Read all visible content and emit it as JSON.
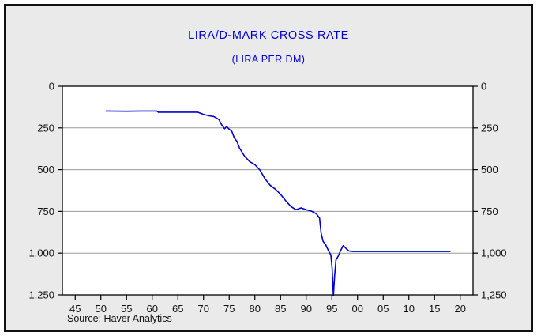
{
  "source_note": "Source: Haver Analytics",
  "chart_data": {
    "type": "line",
    "title": "LIRA/D-MARK CROSS RATE",
    "subtitle": "(LIRA PER DM)",
    "xlabel": "",
    "ylabel": "",
    "x_unit": "year",
    "xlim": [
      1942.5,
      2022.5
    ],
    "ylim": [
      0,
      1250
    ],
    "y_axis_note": "inverted scale: 0 at top, 1,250 at bottom; lira per DM plotted downward; labels on both left and right sides",
    "grid": "horizontal",
    "legend": "none",
    "x_tick_values": [
      1945,
      1950,
      1955,
      1960,
      1965,
      1970,
      1975,
      1980,
      1985,
      1990,
      1995,
      2000,
      2005,
      2010,
      2015,
      2020
    ],
    "x_tick_labels": [
      "45",
      "50",
      "55",
      "60",
      "65",
      "70",
      "75",
      "80",
      "85",
      "90",
      "95",
      "00",
      "05",
      "10",
      "15",
      "20"
    ],
    "y_tick_values": [
      0,
      250,
      500,
      750,
      1000,
      1250
    ],
    "y_tick_labels": [
      "0",
      "250",
      "500",
      "750",
      "1,000",
      "1,250"
    ],
    "colors": {
      "line": "#0000cd",
      "title": "#0000cd",
      "background": "#eaeaea",
      "plot_background": "#ffffff",
      "grid": "#999999",
      "frame": "#000000",
      "tick_text": "#111111"
    },
    "series": [
      {
        "name": "Lira per D-Mark",
        "x": [
          1951,
          1955,
          1958,
          1960.9,
          1961.2,
          1965,
          1968.9,
          1969.9,
          1971,
          1972,
          1973,
          1973.6,
          1974.1,
          1974.5,
          1975,
          1975.5,
          1976,
          1976.5,
          1977,
          1978,
          1979,
          1980,
          1981,
          1982,
          1983,
          1984,
          1985,
          1986,
          1987,
          1988,
          1989,
          1990,
          1991,
          1992,
          1992.6,
          1992.9,
          1993.3,
          1993.8,
          1994.1,
          1994.5,
          1994.8,
          1995.05,
          1995.3,
          1995.55,
          1995.8,
          1996.2,
          1996.7,
          1997.2,
          1997.7,
          1998.3,
          1999,
          2000,
          2005,
          2010,
          2015,
          2018
        ],
        "y": [
          149,
          150,
          149,
          149,
          156,
          156,
          156,
          168,
          177,
          182,
          200,
          235,
          255,
          242,
          258,
          270,
          310,
          330,
          370,
          420,
          452,
          470,
          503,
          556,
          594,
          617,
          648,
          686,
          720,
          740,
          729,
          740,
          748,
          765,
          790,
          880,
          930,
          950,
          970,
          995,
          1010,
          1090,
          1255,
          1130,
          1040,
          1020,
          985,
          955,
          970,
          987,
          990,
          990,
          990,
          990,
          990,
          990
        ]
      }
    ]
  }
}
